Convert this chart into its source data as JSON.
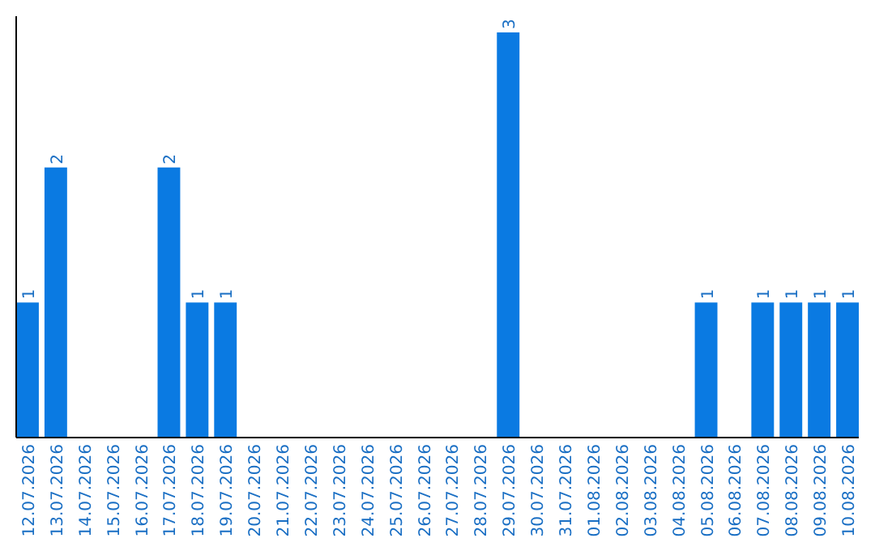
{
  "chart_data": {
    "type": "bar",
    "categories": [
      "12.07.2026",
      "13.07.2026",
      "14.07.2026",
      "15.07.2026",
      "16.07.2026",
      "17.07.2026",
      "18.07.2026",
      "19.07.2026",
      "20.07.2026",
      "21.07.2026",
      "22.07.2026",
      "23.07.2026",
      "24.07.2026",
      "25.07.2026",
      "26.07.2026",
      "27.07.2026",
      "28.07.2026",
      "29.07.2026",
      "30.07.2026",
      "31.07.2026",
      "01.08.2026",
      "02.08.2026",
      "03.08.2026",
      "04.08.2026",
      "05.08.2026",
      "06.08.2026",
      "07.08.2026",
      "08.08.2026",
      "09.08.2026",
      "10.08.2026"
    ],
    "values": [
      1,
      2,
      0,
      0,
      0,
      2,
      1,
      1,
      0,
      0,
      0,
      0,
      0,
      0,
      0,
      0,
      0,
      3,
      0,
      0,
      0,
      0,
      0,
      0,
      1,
      0,
      1,
      1,
      1,
      1
    ],
    "value_labels": [
      "1",
      "2",
      null,
      null,
      null,
      "2",
      "1",
      "1",
      null,
      null,
      null,
      null,
      null,
      null,
      null,
      null,
      null,
      "3",
      null,
      null,
      null,
      null,
      null,
      null,
      "1",
      null,
      "1",
      "1",
      "1",
      "1"
    ],
    "color": "#0a7ae2"
  }
}
